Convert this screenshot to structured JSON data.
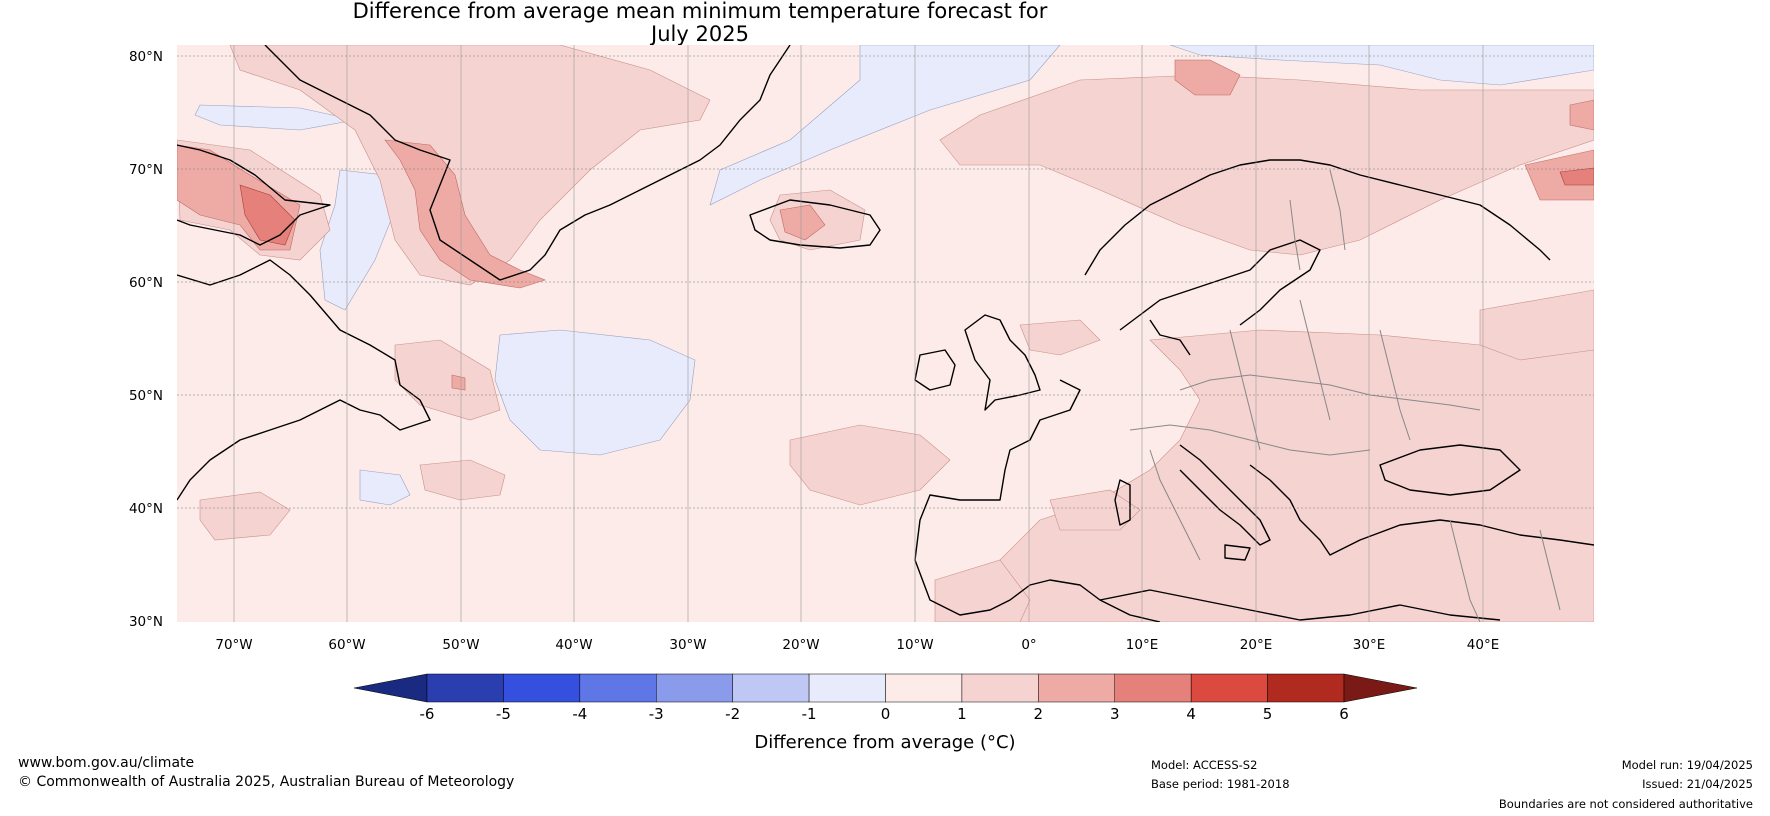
{
  "title_line1": "Difference from average mean minimum temperature forecast for",
  "title_line2": "July 2025",
  "lat_labels": [
    "80°N",
    "70°N",
    "60°N",
    "50°N",
    "40°N",
    "30°N"
  ],
  "lon_labels": [
    "70°W",
    "60°W",
    "50°W",
    "40°W",
    "30°W",
    "20°W",
    "10°W",
    "0°",
    "10°E",
    "20°E",
    "30°E",
    "40°E"
  ],
  "colorbar": {
    "title": "Difference from average (°C)",
    "ticks": [
      "-6",
      "-5",
      "-4",
      "-3",
      "-2",
      "-1",
      "0",
      "1",
      "2",
      "3",
      "4",
      "5",
      "6"
    ],
    "colors": [
      "#1a2a80",
      "#2a3eb0",
      "#3550de",
      "#5f76e6",
      "#8a9bec",
      "#bfc8f4",
      "#e8ebfb",
      "#fcebe9",
      "#f5d3d1",
      "#eeaba6",
      "#e6807a",
      "#db4a3e",
      "#b02a20",
      "#7a1a16"
    ]
  },
  "footer": {
    "website": "www.bom.gov.au/climate",
    "copyright": "© Commonwealth of Australia 2025, Australian Bureau of Meteorology",
    "model": "Model: ACCESS-S2",
    "base_period": "Base period: 1981-2018",
    "model_run": "Model run: 19/04/2025",
    "issued": "Issued: 21/04/2025",
    "disclaimer": "Boundaries are not considered authoritative"
  }
}
